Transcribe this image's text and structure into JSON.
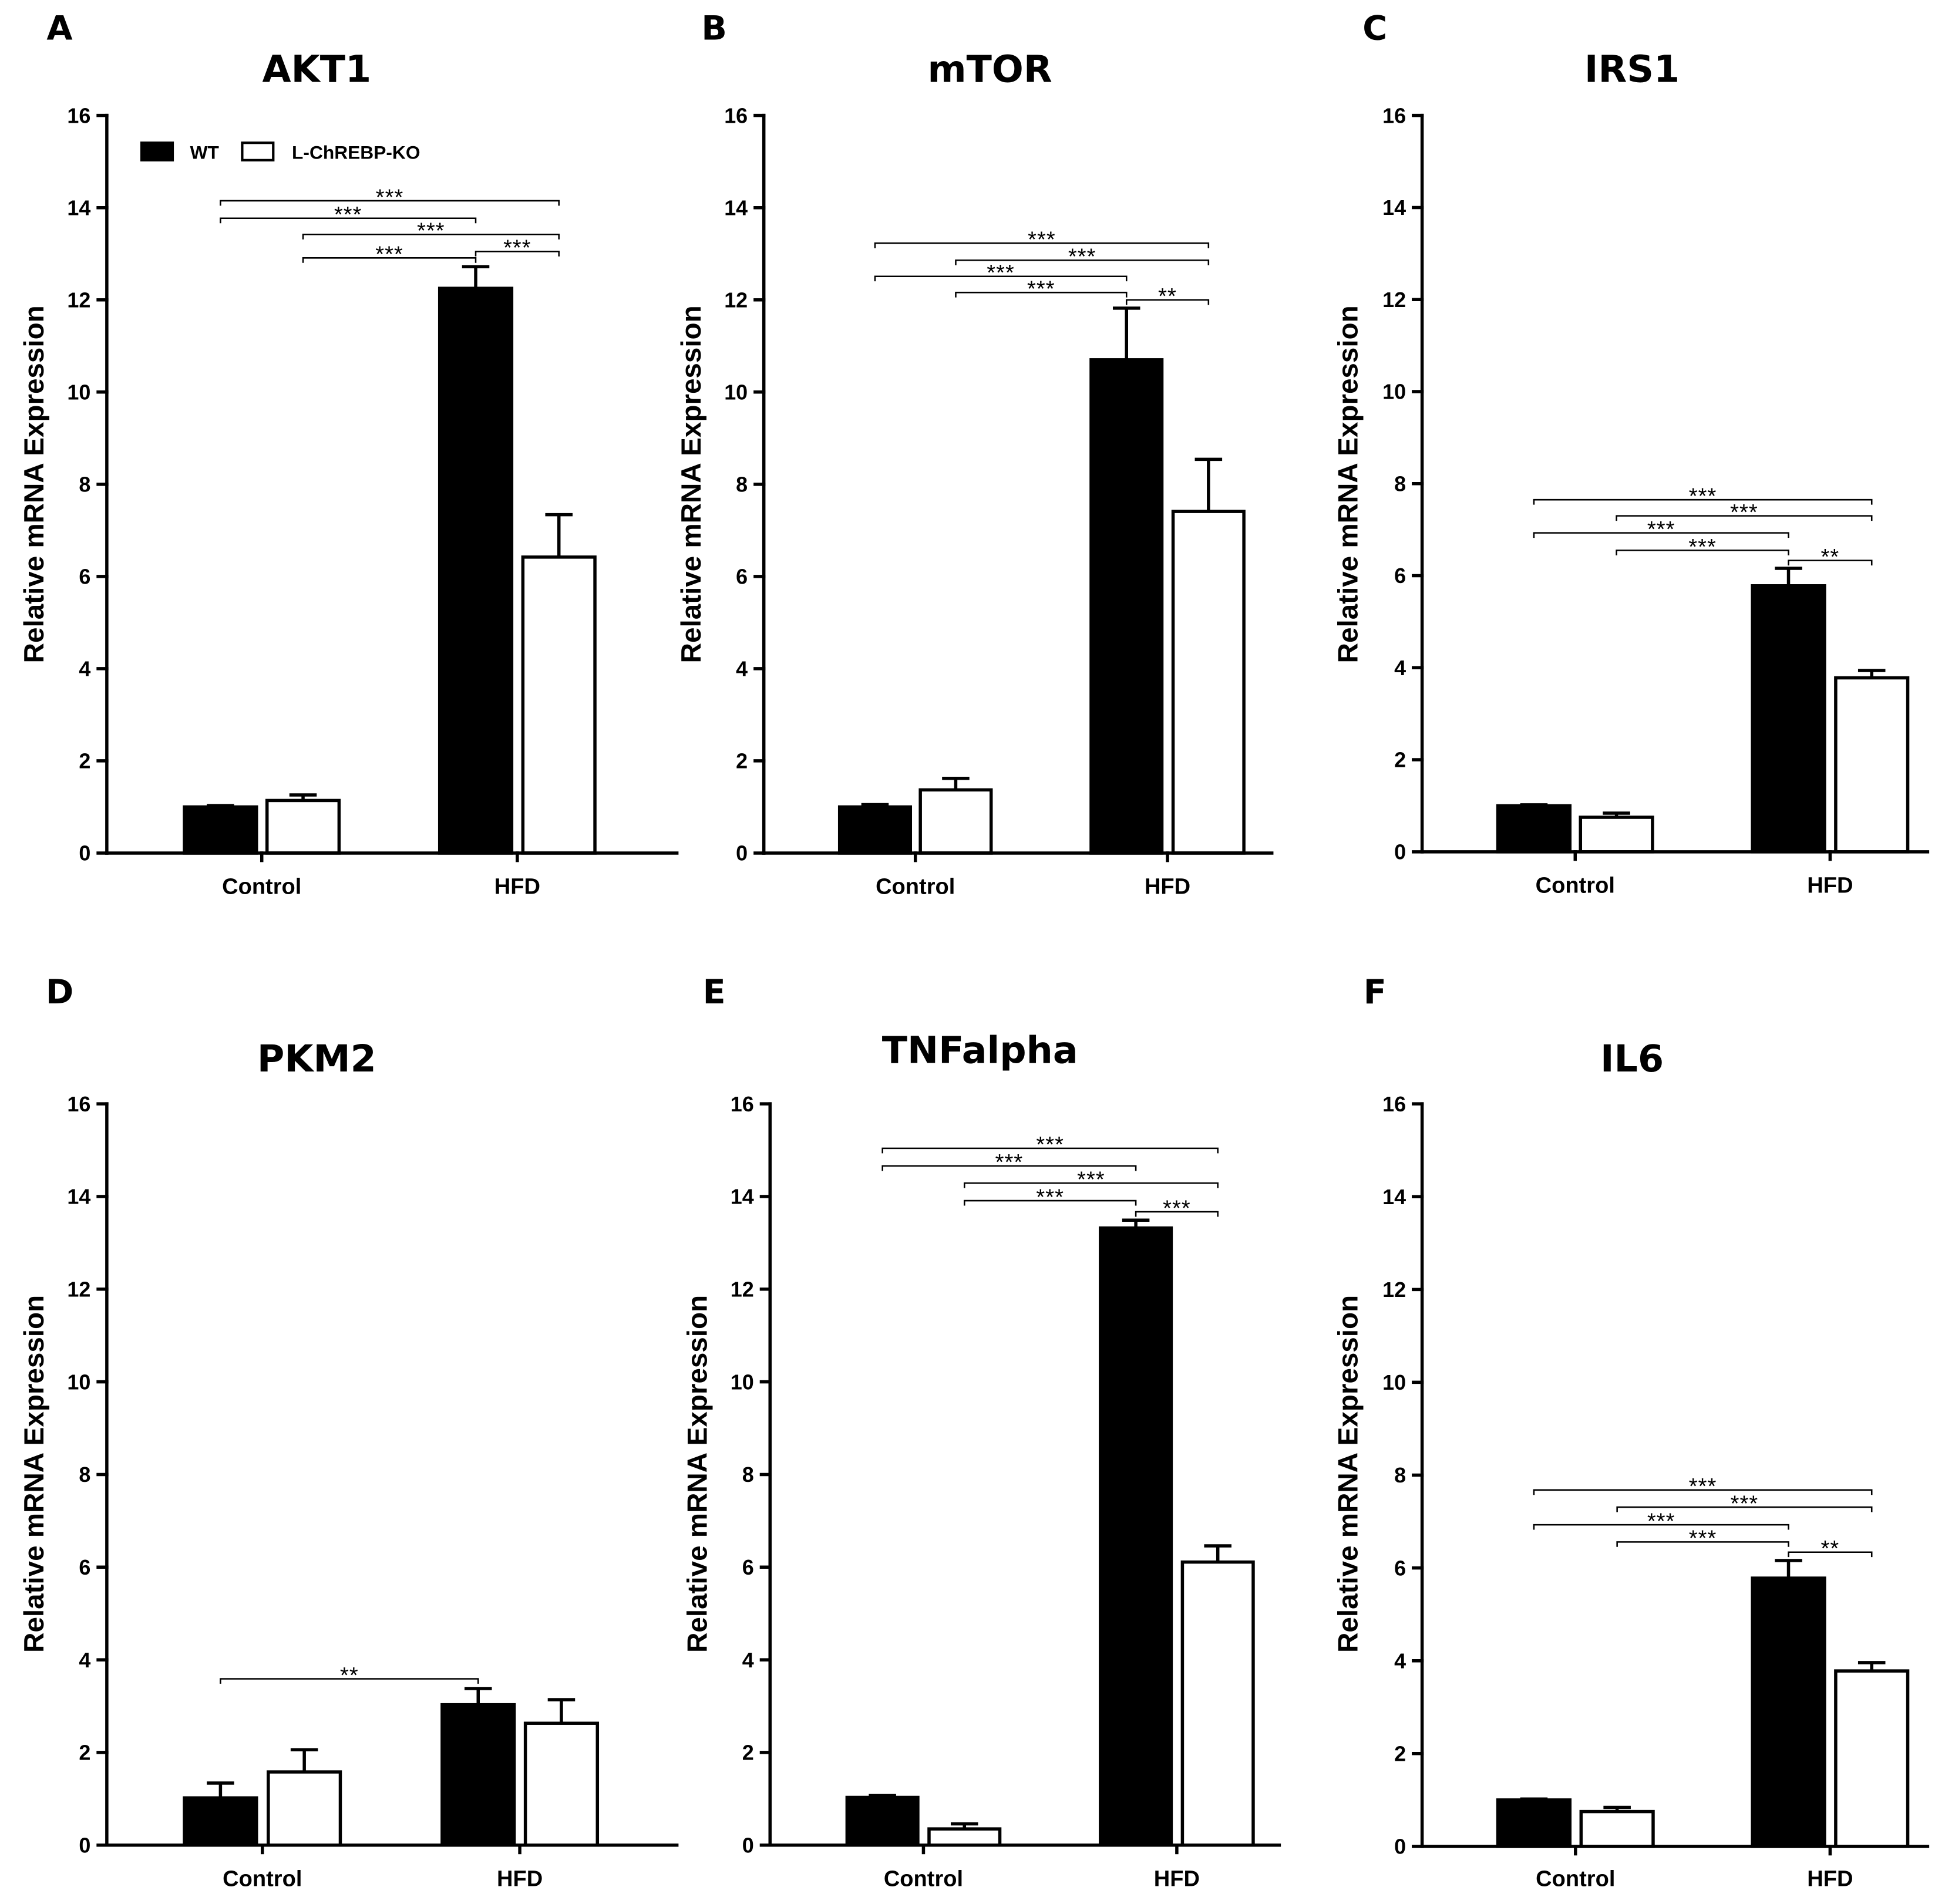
{
  "legend": {
    "items": [
      {
        "name": "WT",
        "color": "#000000"
      },
      {
        "name": "L-ChREBP-KO",
        "color": "#ffffff"
      }
    ]
  },
  "chart_data": [
    {
      "panel": "A",
      "type": "bar",
      "title": "AKT1",
      "ylabel": "Relative mRNA Expression",
      "ylim": [
        0,
        16
      ],
      "yticks": [
        0,
        2,
        4,
        6,
        8,
        10,
        12,
        14,
        16
      ],
      "categories": [
        "Control",
        "HFD"
      ],
      "legend": true,
      "series": [
        {
          "name": "WT",
          "color": "#000000",
          "values": [
            1.0,
            12.25
          ],
          "errors": [
            0.03,
            0.47
          ]
        },
        {
          "name": "L-ChREBP-KO",
          "color": "#ffffff",
          "values": [
            1.14,
            6.42
          ],
          "errors": [
            0.12,
            0.92
          ]
        }
      ],
      "comparisons": [
        {
          "pair": [
            [
              0,
              0
            ],
            [
              1,
              1
            ]
          ],
          "label": "***"
        },
        {
          "pair": [
            [
              0,
              0
            ],
            [
              1,
              0
            ]
          ],
          "label": "***"
        },
        {
          "pair": [
            [
              0,
              1
            ],
            [
              1,
              1
            ]
          ],
          "label": "***"
        },
        {
          "pair": [
            [
              0,
              1
            ],
            [
              1,
              0
            ]
          ],
          "label": "***"
        },
        {
          "pair": [
            [
              1,
              0
            ],
            [
              1,
              1
            ]
          ],
          "label": "***"
        }
      ]
    },
    {
      "panel": "B",
      "type": "bar",
      "title": "mTOR",
      "ylabel": "Relative mRNA Expression",
      "ylim": [
        0,
        16
      ],
      "yticks": [
        0,
        2,
        4,
        6,
        8,
        10,
        12,
        14,
        16
      ],
      "categories": [
        "Control",
        "HFD"
      ],
      "legend": false,
      "series": [
        {
          "name": "WT",
          "color": "#000000",
          "values": [
            1.0,
            10.7
          ],
          "errors": [
            0.05,
            1.12
          ]
        },
        {
          "name": "L-ChREBP-KO",
          "color": "#ffffff",
          "values": [
            1.37,
            7.41
          ],
          "errors": [
            0.25,
            1.13
          ]
        }
      ],
      "comparisons": [
        {
          "pair": [
            [
              0,
              0
            ],
            [
              1,
              1
            ]
          ],
          "label": "***"
        },
        {
          "pair": [
            [
              0,
              1
            ],
            [
              1,
              1
            ]
          ],
          "label": "***"
        },
        {
          "pair": [
            [
              0,
              0
            ],
            [
              1,
              0
            ]
          ],
          "label": "***"
        },
        {
          "pair": [
            [
              0,
              1
            ],
            [
              1,
              0
            ]
          ],
          "label": "***"
        },
        {
          "pair": [
            [
              1,
              0
            ],
            [
              1,
              1
            ]
          ],
          "label": "**"
        }
      ]
    },
    {
      "panel": "C",
      "type": "bar",
      "title": "IRS1",
      "ylabel": "Relative mRNA Expression",
      "ylim": [
        0,
        16
      ],
      "yticks": [
        0,
        2,
        4,
        6,
        8,
        10,
        12,
        14,
        16
      ],
      "categories": [
        "Control",
        "HFD"
      ],
      "legend": false,
      "series": [
        {
          "name": "WT",
          "color": "#000000",
          "values": [
            1.0,
            5.78
          ],
          "errors": [
            0.02,
            0.38
          ]
        },
        {
          "name": "L-ChREBP-KO",
          "color": "#ffffff",
          "values": [
            0.75,
            3.78
          ],
          "errors": [
            0.09,
            0.16
          ]
        }
      ],
      "comparisons": [
        {
          "pair": [
            [
              0,
              0
            ],
            [
              1,
              1
            ]
          ],
          "label": "***"
        },
        {
          "pair": [
            [
              0,
              1
            ],
            [
              1,
              1
            ]
          ],
          "label": "***"
        },
        {
          "pair": [
            [
              0,
              0
            ],
            [
              1,
              0
            ]
          ],
          "label": "***"
        },
        {
          "pair": [
            [
              0,
              1
            ],
            [
              1,
              0
            ]
          ],
          "label": "***"
        },
        {
          "pair": [
            [
              1,
              0
            ],
            [
              1,
              1
            ]
          ],
          "label": "**"
        }
      ]
    },
    {
      "panel": "D",
      "type": "bar",
      "title": "PKM2",
      "ylabel": "Relative mRNA Expression",
      "ylim": [
        0,
        16
      ],
      "yticks": [
        0,
        2,
        4,
        6,
        8,
        10,
        12,
        14,
        16
      ],
      "categories": [
        "Control",
        "HFD"
      ],
      "legend": false,
      "series": [
        {
          "name": "WT",
          "color": "#000000",
          "values": [
            1.02,
            3.03
          ],
          "errors": [
            0.32,
            0.35
          ]
        },
        {
          "name": "L-ChREBP-KO",
          "color": "#ffffff",
          "values": [
            1.58,
            2.63
          ],
          "errors": [
            0.48,
            0.51
          ]
        }
      ],
      "comparisons": [
        {
          "pair": [
            [
              0,
              0
            ],
            [
              1,
              0
            ]
          ],
          "label": "**"
        }
      ]
    },
    {
      "panel": "E",
      "type": "bar",
      "title": "TNFalpha",
      "ylabel": "Relative mRNA Expression",
      "ylim": [
        0,
        16
      ],
      "yticks": [
        0,
        2,
        4,
        6,
        8,
        10,
        12,
        14,
        16
      ],
      "categories": [
        "Control",
        "HFD"
      ],
      "legend": false,
      "series": [
        {
          "name": "WT",
          "color": "#000000",
          "values": [
            1.03,
            13.32
          ],
          "errors": [
            0.04,
            0.17
          ]
        },
        {
          "name": "L-ChREBP-KO",
          "color": "#ffffff",
          "values": [
            0.35,
            6.11
          ],
          "errors": [
            0.11,
            0.35
          ]
        }
      ],
      "comparisons": [
        {
          "pair": [
            [
              0,
              0
            ],
            [
              1,
              1
            ]
          ],
          "label": "***"
        },
        {
          "pair": [
            [
              0,
              0
            ],
            [
              1,
              0
            ]
          ],
          "label": "***"
        },
        {
          "pair": [
            [
              0,
              1
            ],
            [
              1,
              1
            ]
          ],
          "label": "***"
        },
        {
          "pair": [
            [
              0,
              1
            ],
            [
              1,
              0
            ]
          ],
          "label": "***"
        },
        {
          "pair": [
            [
              1,
              0
            ],
            [
              1,
              1
            ]
          ],
          "label": "***"
        }
      ]
    },
    {
      "panel": "F",
      "type": "bar",
      "title": "IL6",
      "ylabel": "Relative mRNA Expression",
      "ylim": [
        0,
        16
      ],
      "yticks": [
        0,
        2,
        4,
        6,
        8,
        10,
        12,
        14,
        16
      ],
      "categories": [
        "Control",
        "HFD"
      ],
      "legend": false,
      "series": [
        {
          "name": "WT",
          "color": "#000000",
          "values": [
            1.0,
            5.78
          ],
          "errors": [
            0.02,
            0.38
          ]
        },
        {
          "name": "L-ChREBP-KO",
          "color": "#ffffff",
          "values": [
            0.75,
            3.78
          ],
          "errors": [
            0.09,
            0.18
          ]
        }
      ],
      "comparisons": [
        {
          "pair": [
            [
              0,
              0
            ],
            [
              1,
              1
            ]
          ],
          "label": "***"
        },
        {
          "pair": [
            [
              0,
              1
            ],
            [
              1,
              1
            ]
          ],
          "label": "***"
        },
        {
          "pair": [
            [
              0,
              0
            ],
            [
              1,
              0
            ]
          ],
          "label": "***"
        },
        {
          "pair": [
            [
              0,
              1
            ],
            [
              1,
              0
            ]
          ],
          "label": "***"
        },
        {
          "pair": [
            [
              1,
              0
            ],
            [
              1,
              1
            ]
          ],
          "label": "**"
        }
      ]
    }
  ]
}
